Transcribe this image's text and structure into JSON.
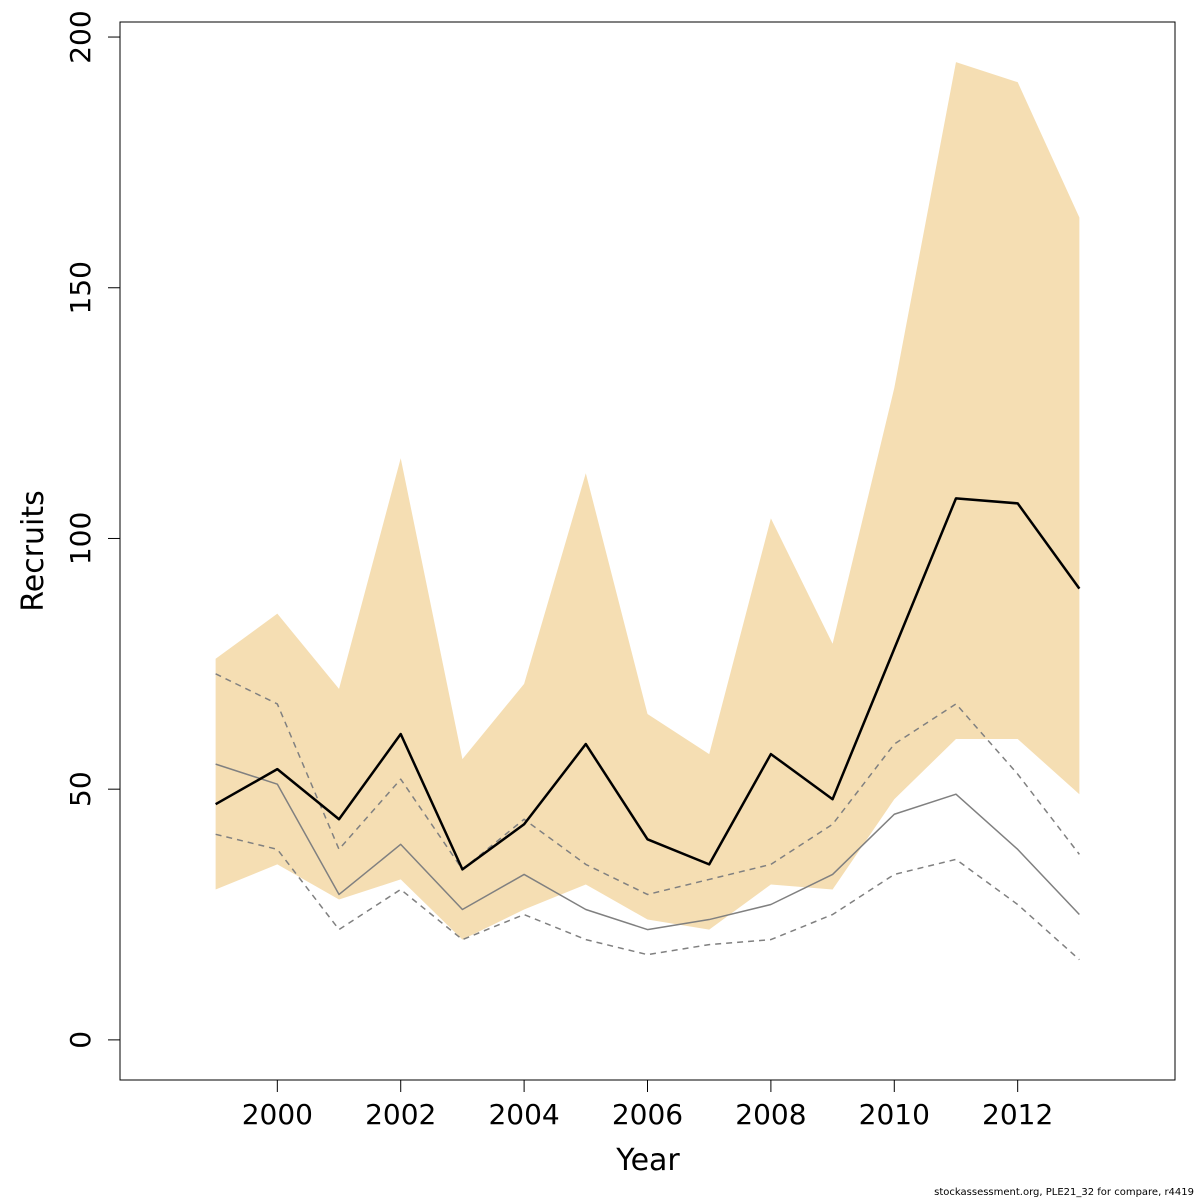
{
  "chart_data": {
    "type": "line",
    "title": "",
    "xlabel": "Year",
    "ylabel": "Recruits",
    "xlim": [
      1997.45,
      2014.55
    ],
    "ylim": [
      -8,
      203
    ],
    "x": [
      1999,
      2000,
      2001,
      2002,
      2003,
      2004,
      2005,
      2006,
      2007,
      2008,
      2009,
      2010,
      2011,
      2012,
      2013
    ],
    "xticks": [
      2000,
      2002,
      2004,
      2006,
      2008,
      2010,
      2012
    ],
    "yticks": [
      0,
      50,
      100,
      150,
      200
    ],
    "grid": false,
    "legend": "none",
    "band": {
      "color": "#f5deb3",
      "lower": [
        30,
        35,
        28,
        32,
        20,
        26,
        31,
        24,
        22,
        31,
        30,
        48,
        60,
        60,
        49
      ],
      "upper": [
        76,
        85,
        70,
        116,
        56,
        71,
        113,
        65,
        57,
        104,
        79,
        130,
        195,
        191,
        164
      ]
    },
    "series": [
      {
        "role": "estimate",
        "color": "#000000",
        "style": "solid",
        "values": [
          47,
          54,
          44,
          61,
          34,
          43,
          59,
          40,
          35,
          57,
          48,
          78,
          108,
          107,
          90
        ]
      },
      {
        "role": "compare-estimate",
        "color": "#808080",
        "style": "solid",
        "values": [
          55,
          51,
          29,
          39,
          26,
          33,
          26,
          22,
          24,
          27,
          33,
          45,
          49,
          38,
          25
        ]
      },
      {
        "role": "compare-upper",
        "color": "#808080",
        "style": "dashed",
        "values": [
          73,
          67,
          38,
          52,
          34,
          44,
          35,
          29,
          32,
          35,
          43,
          59,
          67,
          53,
          37
        ]
      },
      {
        "role": "compare-lower",
        "color": "#808080",
        "style": "dashed",
        "values": [
          41,
          38,
          22,
          30,
          20,
          25,
          20,
          17,
          19,
          20,
          25,
          33,
          36,
          27,
          16
        ]
      }
    ]
  },
  "footer": "stockassessment.org, PLE21_32 for compare, r4419"
}
